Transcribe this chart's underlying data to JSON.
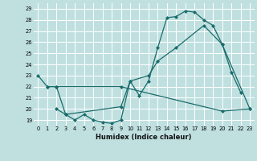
{
  "xlabel": "Humidex (Indice chaleur)",
  "background_color": "#c0e0e0",
  "grid_color": "#ffffff",
  "line_color": "#1a6b6b",
  "xlim": [
    -0.5,
    23.5
  ],
  "ylim": [
    18.5,
    29.5
  ],
  "yticks": [
    19,
    20,
    21,
    22,
    23,
    24,
    25,
    26,
    27,
    28,
    29
  ],
  "xticks": [
    0,
    1,
    2,
    3,
    4,
    5,
    6,
    7,
    8,
    9,
    10,
    11,
    12,
    13,
    14,
    15,
    16,
    17,
    18,
    19,
    20,
    21,
    22,
    23
  ],
  "line1_x": [
    0,
    1,
    2,
    3,
    4,
    5,
    6,
    7,
    8,
    9,
    10,
    11,
    12,
    13,
    14,
    15,
    16,
    17,
    18,
    19,
    20,
    21,
    22
  ],
  "line1_y": [
    23,
    22,
    22,
    19.5,
    19,
    19.5,
    19,
    18.8,
    18.7,
    19,
    22.5,
    21.2,
    22.5,
    25.5,
    28.2,
    28.3,
    28.8,
    28.7,
    28.0,
    27.5,
    25.8,
    23.3,
    21.5
  ],
  "line2_x": [
    1,
    2,
    9,
    20,
    23
  ],
  "line2_y": [
    22,
    22,
    22,
    19.8,
    20
  ],
  "line3_x": [
    2,
    3,
    9,
    10,
    12,
    13,
    15,
    18,
    20,
    23
  ],
  "line3_y": [
    20,
    19.5,
    20.2,
    22.5,
    23.0,
    24.3,
    25.5,
    27.5,
    25.8,
    20
  ]
}
